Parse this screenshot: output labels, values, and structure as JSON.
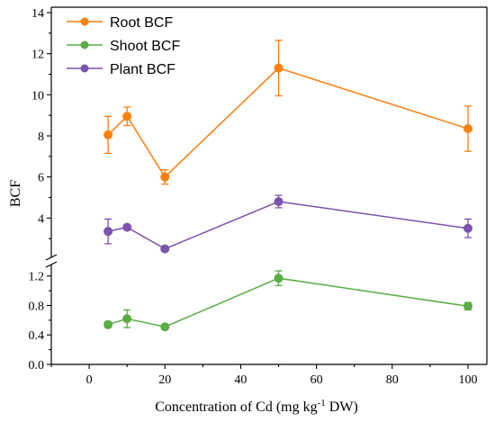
{
  "chart_data": {
    "type": "line",
    "xlabel_main": "Concentration of Cd (mg kg",
    "xlabel_sup": "-1",
    "xlabel_tail": " DW)",
    "ylabel": "BCF",
    "xlim": [
      -10,
      105
    ],
    "x_ticks": [
      0,
      20,
      40,
      60,
      80,
      100
    ],
    "y_upper_ticks": [
      "4",
      "6",
      "8",
      "10",
      "12",
      "14"
    ],
    "y_lower_ticks": [
      "0.0",
      "0.4",
      "0.8",
      "1.2"
    ],
    "y_upper_range": [
      2.0,
      14
    ],
    "y_lower_range": [
      0,
      1.38
    ],
    "axis_break": true,
    "legend_position": "top-left",
    "x": [
      5,
      10,
      20,
      50,
      100
    ],
    "series": [
      {
        "name": "Root BCF",
        "color": "#ff7f0e",
        "panel": "upper",
        "values": [
          8.05,
          8.95,
          6.0,
          11.3,
          8.35
        ],
        "errors": [
          0.9,
          0.45,
          0.35,
          1.35,
          1.1
        ]
      },
      {
        "name": "Shoot BCF",
        "color": "#5aac44",
        "panel": "lower",
        "values": [
          0.54,
          0.62,
          0.51,
          1.17,
          0.79
        ],
        "errors": [
          0.04,
          0.12,
          0.03,
          0.1,
          0.05
        ]
      },
      {
        "name": "Plant BCF",
        "color": "#7b52ae",
        "panel": "upper",
        "values": [
          3.35,
          3.55,
          2.5,
          4.8,
          3.5
        ],
        "errors": [
          0.6,
          0.1,
          0.1,
          0.3,
          0.45
        ]
      }
    ]
  }
}
